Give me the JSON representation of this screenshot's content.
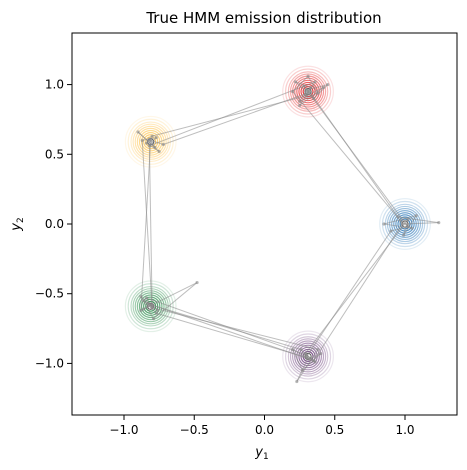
{
  "chart_data": {
    "type": "scatter",
    "title": "True HMM emission distribution",
    "xlabel": "y",
    "xlabel_sub": "1",
    "ylabel": "y",
    "ylabel_sub": "2",
    "xlim": [
      -1.37,
      1.37
    ],
    "ylim": [
      -1.37,
      1.37
    ],
    "xticks": [
      -1.0,
      -0.5,
      0.0,
      0.5,
      1.0
    ],
    "xtick_labels": [
      "−1.0",
      "−0.5",
      "0.0",
      "0.5",
      "1.0"
    ],
    "yticks": [
      -1.0,
      -0.5,
      0.0,
      0.5,
      1.0
    ],
    "ytick_labels": [
      "−1.0",
      "−0.5",
      "0.0",
      "0.5",
      "1.0"
    ],
    "grid": false,
    "components": [
      {
        "color": "#e31a1c",
        "mean": [
          0.31,
          0.95
        ]
      },
      {
        "color": "#fec44f",
        "mean": [
          -0.81,
          0.59
        ]
      },
      {
        "color": "#2171b5",
        "mean": [
          1.0,
          0.0
        ]
      },
      {
        "color": "#238b45",
        "mean": [
          -0.81,
          -0.59
        ]
      },
      {
        "color": "#6a3d7a",
        "mean": [
          0.31,
          -0.95
        ]
      }
    ],
    "trajectory": [
      [
        0.29,
        0.93
      ],
      [
        0.33,
        0.98
      ],
      [
        0.22,
        1.02
      ],
      [
        0.35,
        0.9
      ],
      [
        0.45,
        1.0
      ],
      [
        0.3,
        0.96
      ],
      [
        0.25,
        0.88
      ],
      [
        0.38,
        0.94
      ],
      [
        0.31,
        1.06
      ],
      [
        0.2,
        0.95
      ],
      [
        0.97,
        0.02
      ],
      [
        1.05,
        -0.03
      ],
      [
        0.85,
        0.0
      ],
      [
        1.08,
        0.06
      ],
      [
        0.99,
        -0.08
      ],
      [
        1.02,
        0.03
      ],
      [
        0.29,
        -0.93
      ],
      [
        0.36,
        -0.99
      ],
      [
        0.2,
        -0.9
      ],
      [
        0.27,
        -1.05
      ],
      [
        0.4,
        -0.93
      ],
      [
        0.32,
        -0.97
      ],
      [
        -0.83,
        -0.57
      ],
      [
        -0.76,
        -0.62
      ],
      [
        -0.88,
        -0.52
      ],
      [
        -0.79,
        -0.68
      ],
      [
        -0.48,
        -0.42
      ],
      [
        -0.86,
        -0.61
      ],
      [
        -0.8,
        -0.58
      ],
      [
        -0.82,
        0.61
      ],
      [
        -0.78,
        0.55
      ],
      [
        -0.9,
        0.66
      ],
      [
        -0.75,
        0.52
      ],
      [
        -0.84,
        0.58
      ],
      [
        -0.8,
        0.63
      ],
      [
        0.3,
        0.92
      ],
      [
        0.42,
        0.98
      ],
      [
        0.25,
        0.85
      ],
      [
        0.36,
        1.02
      ],
      [
        -0.82,
        0.56
      ],
      [
        -0.77,
        0.62
      ],
      [
        -0.87,
        0.6
      ],
      [
        -0.8,
        -0.6
      ],
      [
        -0.86,
        -0.55
      ],
      [
        -0.77,
        -0.64
      ],
      [
        0.31,
        -0.96
      ],
      [
        0.23,
        -1.13
      ],
      [
        0.38,
        -0.9
      ],
      [
        -0.8,
        -0.6
      ],
      [
        -0.84,
        -0.53
      ],
      [
        0.3,
        -0.94
      ],
      [
        0.35,
        -0.98
      ],
      [
        0.98,
        0.0
      ],
      [
        1.24,
        0.01
      ],
      [
        0.95,
        0.05
      ],
      [
        0.32,
        0.95
      ],
      [
        0.28,
        0.99
      ],
      [
        1.02,
        -0.02
      ],
      [
        0.9,
        -0.05
      ],
      [
        0.3,
        -0.95
      ],
      [
        0.26,
        -0.9
      ],
      [
        -0.81,
        -0.58
      ],
      [
        -0.88,
        -0.62
      ],
      [
        -0.81,
        0.6
      ],
      [
        -0.72,
        0.57
      ],
      [
        0.31,
        0.94
      ]
    ]
  }
}
